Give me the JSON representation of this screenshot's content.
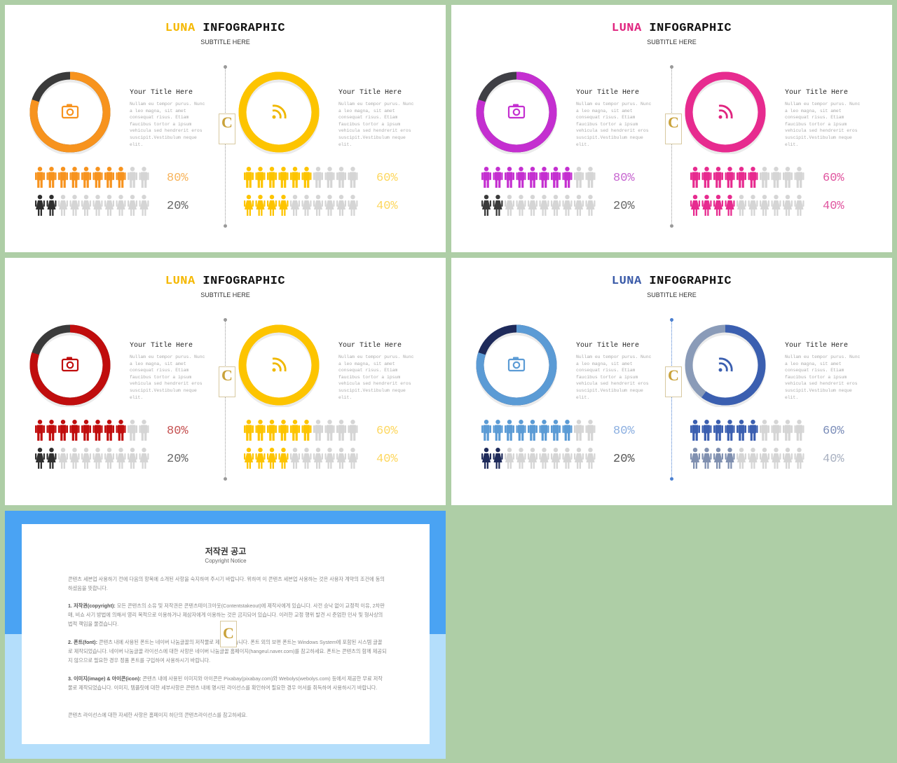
{
  "slides": [
    {
      "brand": "LUNA",
      "heading": "INFOGRAPHIC",
      "subtitle": "SUBTITLE HERE",
      "brand_color": "#f5b800",
      "line_color": "#999999",
      "colors": {
        "ring1": "#f7931e",
        "ring1_dark": "#3a3a3a",
        "ring2": "#fdc400",
        "ring2_dark": "#fdc400",
        "icon1": "#f7931e",
        "icon2": "#f0b800",
        "men1": "#f7931e",
        "women1": "#2f2f2f",
        "men2": "#fdc400",
        "women2": "#fdc400",
        "p1a": "#f7b45c",
        "p1b": "#666666",
        "p2a": "#fdd75e",
        "p2b": "#fdd75e"
      },
      "ring1_pct": 80,
      "ring2_pct": 100,
      "left": {
        "title": "Your Title Here",
        "body": "Nullam eu tempor purus. Nunc a leo magna, sit amet consequat risus. Etiam faucibus tortor a ipsum vehicula sed hendrerit eros suscipit.Vestibulum neque elit.",
        "men_pct": "80%",
        "women_pct": "20%",
        "men_value": 0.8,
        "women_value": 0.2
      },
      "right": {
        "title": "Your Title Here",
        "body": "Nullam eu tempor purus. Nunc a leo magna, sit amet consequat risus. Etiam faucibus tortor a ipsum vehicula sed hendrerit eros suscipit.Vestibulum neque elit.",
        "men_pct": "60%",
        "women_pct": "40%",
        "men_value": 0.6,
        "women_value": 0.4
      },
      "icons": [
        "camera-icon",
        "rss-icon"
      ]
    },
    {
      "brand": "LUNA",
      "heading": "INFOGRAPHIC",
      "subtitle": "SUBTITLE HERE",
      "brand_color": "#e0247f",
      "line_color": "#999999",
      "colors": {
        "ring1": "#c42fd0",
        "ring1_dark": "#3f3f45",
        "ring2": "#e72b8f",
        "ring2_dark": "#e72b8f",
        "icon1": "#c42fd0",
        "icon2": "#e0247f",
        "men1": "#c42fd0",
        "women1": "#3a3a3a",
        "men2": "#e72b8f",
        "women2": "#e72b8f",
        "p1a": "#c765d0",
        "p1b": "#666666",
        "p2a": "#e0559f",
        "p2b": "#e0559f"
      },
      "ring1_pct": 80,
      "ring2_pct": 100,
      "left": {
        "title": "Your Title Here",
        "body": "Nullam eu tempor purus. Nunc a leo magna, sit amet consequat risus. Etiam faucibus tortor a ipsum vehicula sed hendrerit eros suscipit.Vestibulum neque elit.",
        "men_pct": "80%",
        "women_pct": "20%",
        "men_value": 0.8,
        "women_value": 0.2
      },
      "right": {
        "title": "Your Title Here",
        "body": "Nullam eu tempor purus. Nunc a leo magna, sit amet consequat risus. Etiam faucibus tortor a ipsum vehicula sed hendrerit eros suscipit.Vestibulum neque elit.",
        "men_pct": "60%",
        "women_pct": "40%",
        "men_value": 0.6,
        "women_value": 0.4
      },
      "icons": [
        "camera-icon",
        "rss-icon"
      ]
    },
    {
      "brand": "LUNA",
      "heading": "INFOGRAPHIC",
      "subtitle": "SUBTITLE HERE",
      "brand_color": "#f5b800",
      "line_color": "#999999",
      "colors": {
        "ring1": "#c00d0d",
        "ring1_dark": "#3a3a3a",
        "ring2": "#fdc400",
        "ring2_dark": "#fdc400",
        "icon1": "#c00d0d",
        "icon2": "#f0b800",
        "men1": "#c00d0d",
        "women1": "#2f2f2f",
        "men2": "#fdc400",
        "women2": "#fdc400",
        "p1a": "#c55050",
        "p1b": "#666666",
        "p2a": "#fdd75e",
        "p2b": "#fdd75e"
      },
      "ring1_pct": 80,
      "ring2_pct": 100,
      "left": {
        "title": "Your Title Here",
        "body": "Nullam eu tempor purus. Nunc a leo magna, sit amet consequat risus. Etiam faucibus tortor a ipsum vehicula sed hendrerit eros suscipit.Vestibulum neque elit.",
        "men_pct": "80%",
        "women_pct": "20%",
        "men_value": 0.8,
        "women_value": 0.2
      },
      "right": {
        "title": "Your Title Here",
        "body": "Nullam eu tempor purus. Nunc a leo magna, sit amet consequat risus. Etiam faucibus tortor a ipsum vehicula sed hendrerit eros suscipit.Vestibulum neque elit.",
        "men_pct": "60%",
        "women_pct": "40%",
        "men_value": 0.6,
        "women_value": 0.4
      },
      "icons": [
        "camera-icon",
        "rss-icon"
      ]
    },
    {
      "brand": "LUNA",
      "heading": "INFOGRAPHIC",
      "subtitle": "SUBTITLE HERE",
      "brand_color": "#3a5aa8",
      "line_color": "#4a7fd0",
      "colors": {
        "ring1": "#5b9bd5",
        "ring1_dark": "#1e2a5a",
        "ring2": "#3b5fb0",
        "ring2_dark": "#8a9bb8",
        "icon1": "#5b9bd5",
        "icon2": "#3b5fb0",
        "men1": "#5b9bd5",
        "women1": "#1e2a5a",
        "men2": "#3b5fb0",
        "women2": "#8090b0",
        "p1a": "#8aaee0",
        "p1b": "#555555",
        "p2a": "#7a8cb8",
        "p2b": "#a8b0c0"
      },
      "ring1_pct": 80,
      "ring2_pct": 60,
      "left": {
        "title": "Your Title Here",
        "body": "Nullam eu tempor purus. Nunc a leo magna, sit amet consequat risus. Etiam faucibus tortor a ipsum vehicula sed hendrerit eros suscipit.Vestibulum neque elit.",
        "men_pct": "80%",
        "women_pct": "20%",
        "men_value": 0.8,
        "women_value": 0.2
      },
      "right": {
        "title": "Your Title Here",
        "body": "Nullam eu tempor purus. Nunc a leo magna, sit amet consequat risus. Etiam faucibus tortor a ipsum vehicula sed hendrerit eros suscipit.Vestibulum neque elit.",
        "men_pct": "60%",
        "women_pct": "40%",
        "men_value": 0.6,
        "women_value": 0.4
      },
      "icons": [
        "camera-icon",
        "rss-icon"
      ]
    }
  ],
  "notice": {
    "title": "저작권 공고",
    "subtitle": "Copyright Notice",
    "intro": "콘텐츠 세븐업 사용하기 전에 다음의 항목에 소개된 사항을 숙지하여 주시기 바랍니다. 위하여 이 콘텐츠 세븐업 사용하는 것은 사용자 계약의 조건에 동의하셨음을 뜻합니다.",
    "p1_label": "1. 저작권(copyright):",
    "p1": "모든 콘텐츠의 소유 및 저작권은 콘텐츠테이크아웃(Contentstakeout)에 제작사에게 있습니다. 사전 승낙 없이 교정적 이유, 2차판매, 비쇼 사기 방법에 의해서 영리 목적으로 이용하거나 제삼자에게 이용하는 것은 금지되어 있습니다. 이러한 교정 행위 발견 시 준엄한 민사 및 형사상의 법적 책임을 물겠습니다.",
    "p2_label": "2. 폰트(font):",
    "p2": "콘텐츠 내에 사용된 폰트는 네이버 나눔글꼴의 저작물로 제작되었습니다. 폰트 외의 보편 폰트는 Windows System에 포함된 시스템 글꼴로 제작되었습니다. 네이버 나눔글꼴 라이선스에 대한 사항은 네이버 나눔글꼴 홈페이지(hangeul.naver.com)를 참고하세요. 폰트는 콘텐츠의 함께 제공되지 않으므로 필요한 경우 정품 폰트를 구입하여 사용하시기 바랍니다.",
    "p3_label": "3. 이미지(image) & 아이콘(icon):",
    "p3": "콘텐츠 내에 사용된 이미지와 아이콘은 Pixabay(pixabay.com)와 Webolys(webolys.com) 등에서 제공한 무료 저작물로 제작되었습니다. 이미지, 템플릿에 대한 세부사항은 콘텐츠 내에 명시된 라이선스를 확인하여 필요한 경우 어서를 취득하여 사용하시기 바랍니다.",
    "outro": "콘텐츠 라이선스에 대한 자세한 사항은 홈페이지 하단의 콘텐츠라이선스를 참고하세요."
  }
}
